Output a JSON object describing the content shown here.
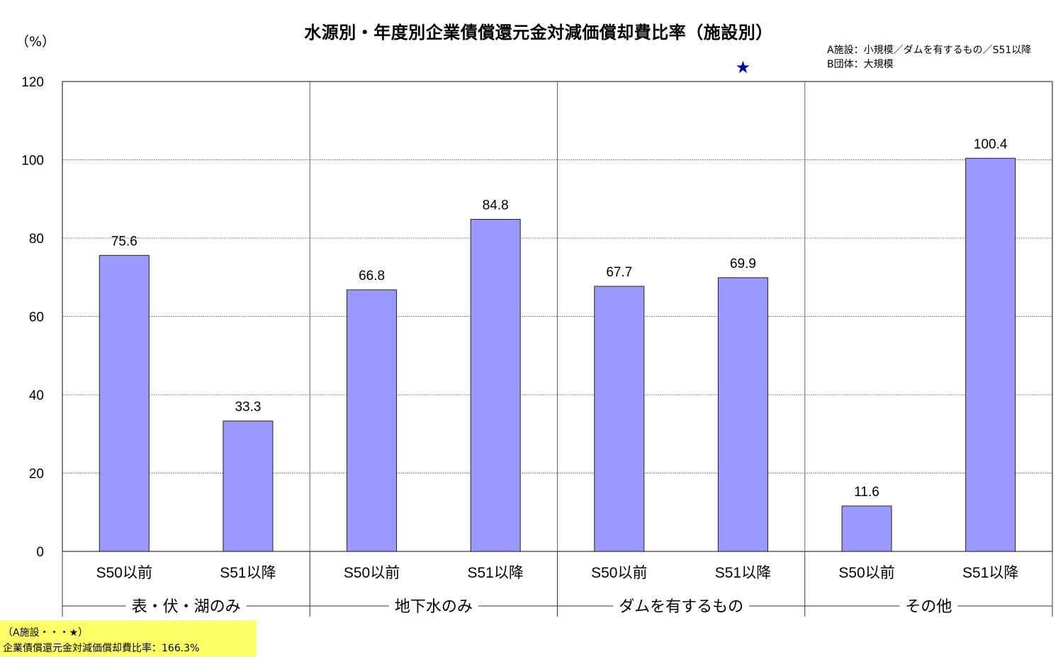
{
  "chart_data": {
    "type": "bar",
    "title": "水源別・年度別企業債償還元金対減価償却費比率（施設別）",
    "ylabel": "（%）",
    "ylim": [
      0,
      120
    ],
    "yticks": [
      "0",
      "20",
      "40",
      "60",
      "80",
      "100",
      "120"
    ],
    "grid": true,
    "groups": [
      {
        "label": "表・伏・湖のみ",
        "categories": [
          "S50以前",
          "S51以降"
        ],
        "values": [
          75.6,
          33.3
        ],
        "labels": [
          "75.6",
          "33.3"
        ]
      },
      {
        "label": "地下水のみ",
        "categories": [
          "S50以前",
          "S51以降"
        ],
        "values": [
          66.8,
          84.8
        ],
        "labels": [
          "66.8",
          "84.8"
        ]
      },
      {
        "label": "ダムを有するもの",
        "categories": [
          "S50以前",
          "S51以降"
        ],
        "values": [
          67.7,
          69.9
        ],
        "labels": [
          "67.7",
          "69.9"
        ]
      },
      {
        "label": "その他",
        "categories": [
          "S50以前",
          "S51以降"
        ],
        "values": [
          11.6,
          100.4
        ],
        "labels": [
          "11.6",
          "100.4"
        ]
      }
    ],
    "marker": {
      "symbol": "★",
      "group": 2,
      "category": 1,
      "value": 166.3
    },
    "bar_color": "#9999ff",
    "marker_color": "#0000aa",
    "annotations": {
      "a": "A施設：小規模／ダムを有するもの／S51以降",
      "b": "B団体：大規模"
    },
    "footnote": {
      "line1": "（A施設・・・★）",
      "line2": "企業債償還元金対減価償却費比率：166.3%",
      "bg_color": "#ffff66"
    }
  }
}
